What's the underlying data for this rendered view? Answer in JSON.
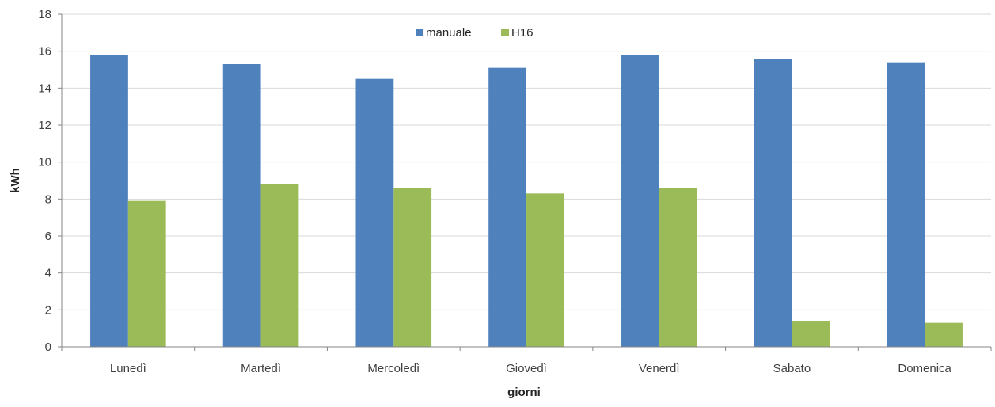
{
  "chart_data": {
    "type": "bar",
    "title": "",
    "xlabel": "giorni",
    "ylabel": "kWh",
    "ylim": [
      0,
      18
    ],
    "yticks": [
      0,
      2,
      4,
      6,
      8,
      10,
      12,
      14,
      16,
      18
    ],
    "grid": true,
    "legend_position": "top-center",
    "categories": [
      "Lunedì",
      "Martedì",
      "Mercoledì",
      "Giovedì",
      "Venerdì",
      "Sabato",
      "Domenica"
    ],
    "series": [
      {
        "name": "manuale",
        "color": "#4f81bd",
        "values": [
          15.8,
          15.3,
          14.5,
          15.1,
          15.8,
          15.6,
          15.4
        ]
      },
      {
        "name": "H16",
        "color": "#9bbb59",
        "values": [
          7.9,
          8.8,
          8.6,
          8.3,
          8.6,
          1.4,
          1.3
        ]
      }
    ]
  }
}
